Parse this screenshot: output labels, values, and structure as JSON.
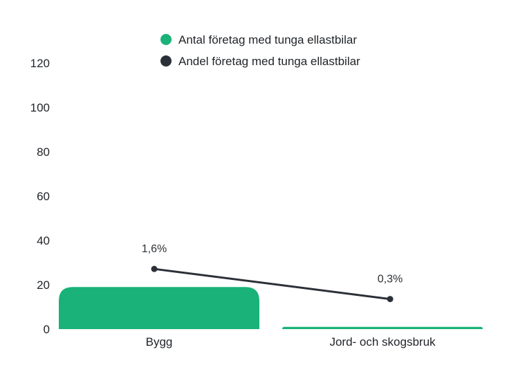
{
  "chart_data": {
    "type": "bar",
    "categories": [
      "Bygg",
      "Jord- och skogsbruk"
    ],
    "series": [
      {
        "name": "Antal företag med tunga ellastbilar",
        "type": "bar",
        "color": "#1ab279",
        "values": [
          19,
          1
        ]
      },
      {
        "name": "Andel företag med tunga ellastbilar",
        "type": "line",
        "color": "#2b3038",
        "values": [
          1.6,
          0.3
        ],
        "labels": [
          "1,6%",
          "0,3%"
        ]
      }
    ],
    "yticks": [
      "0",
      "20",
      "40",
      "60",
      "80",
      "100",
      "120"
    ],
    "ylim": [
      0,
      120
    ],
    "grid": false,
    "legend_position": "top-center"
  }
}
